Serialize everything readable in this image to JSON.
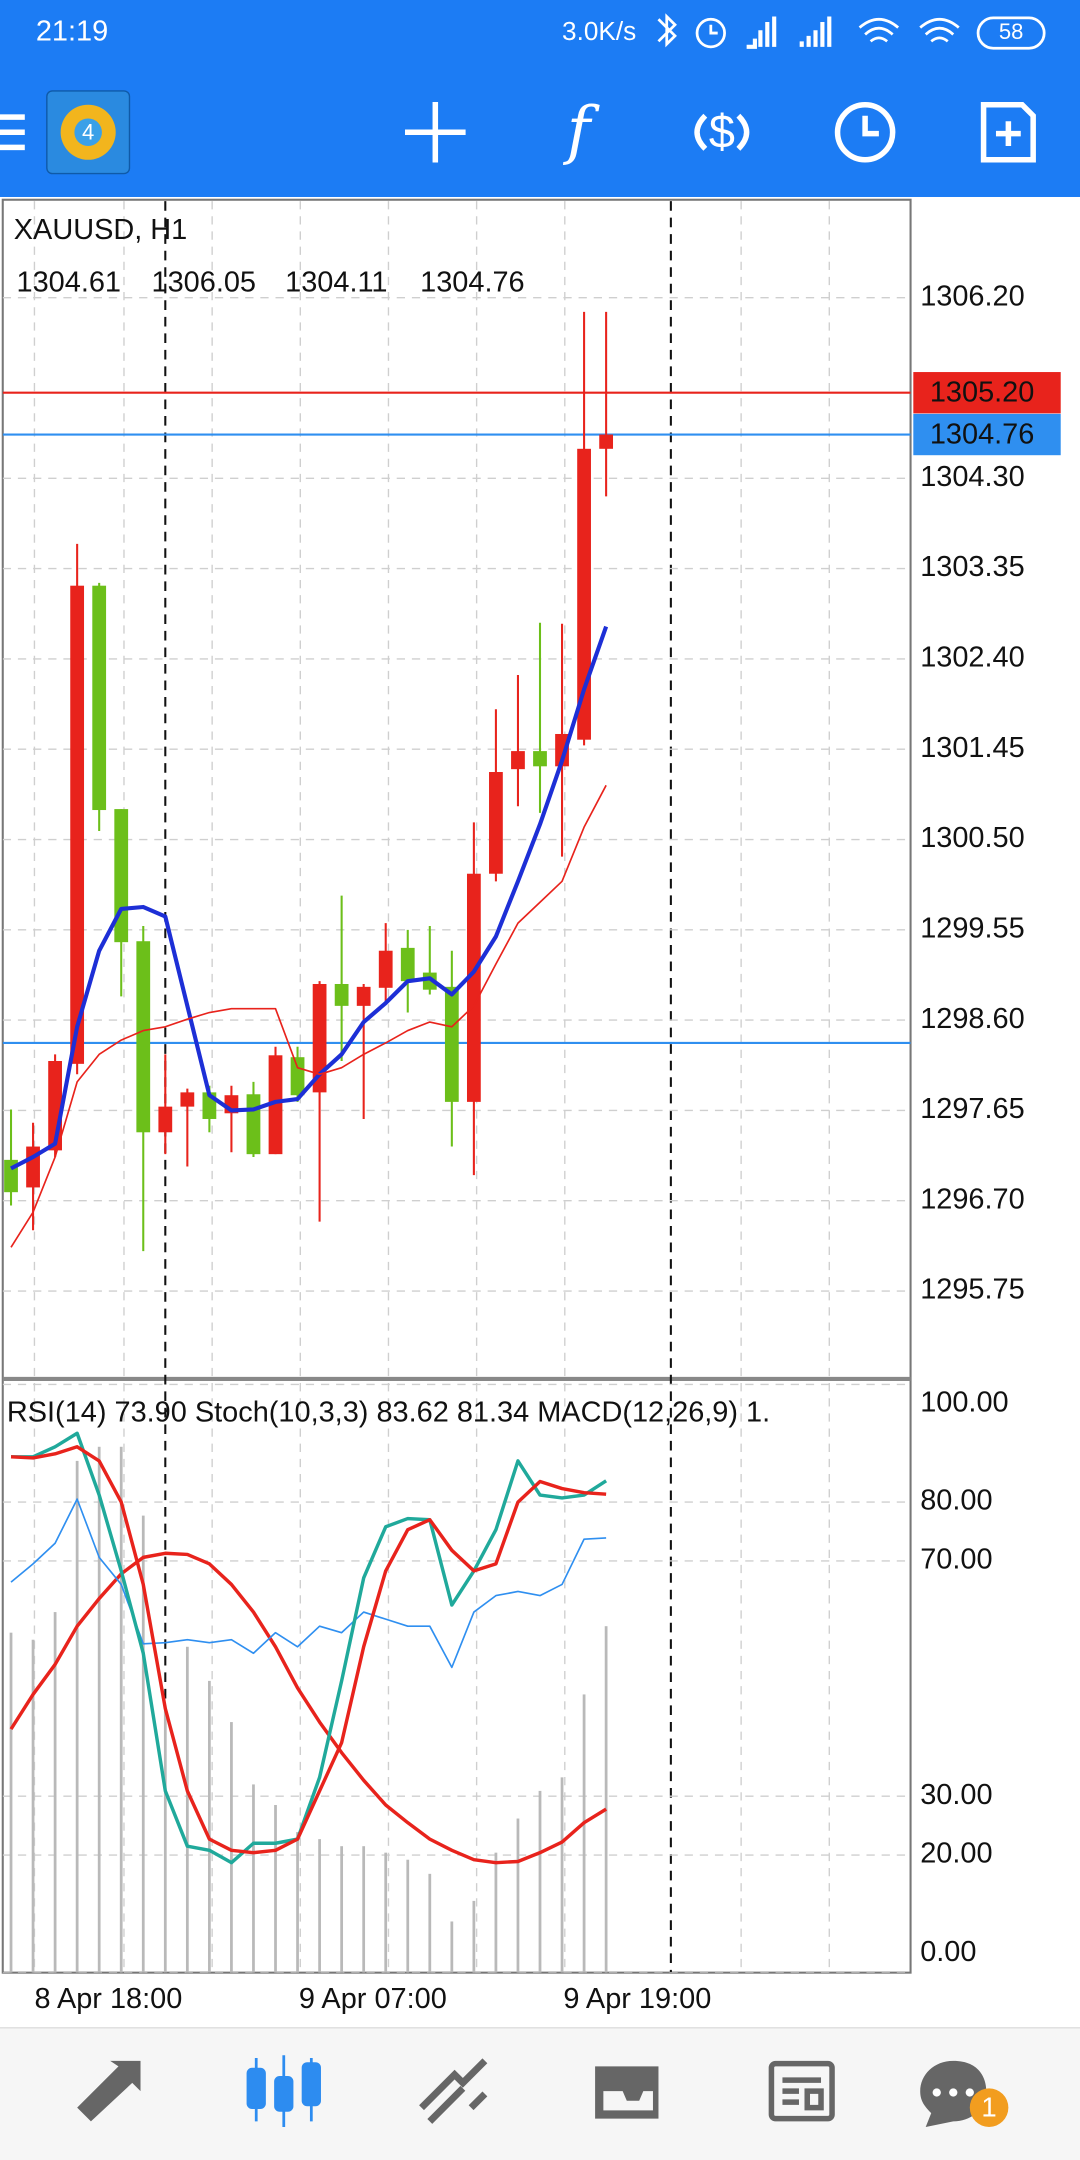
{
  "status_bar": {
    "time": "21:19",
    "speed": "3.0K/s",
    "battery": "58"
  },
  "chart_data": {
    "type": "candlestick",
    "symbol": "XAUUSD, H1",
    "up_color": "#e8231c",
    "down_color": "#6cbf1a",
    "categories": [
      null,
      "8 Apr 18:00",
      null,
      null,
      null,
      null,
      null,
      null,
      null,
      null,
      null,
      null,
      null,
      "9 Apr 07:00",
      null,
      null,
      null,
      null,
      null,
      null,
      null,
      null,
      null,
      null,
      null,
      "9 Apr 19:00",
      null,
      null
    ],
    "open": [
      1297.13,
      1296.84,
      1297.23,
      1298.14,
      1303.17,
      1300.82,
      1299.43,
      1297.42,
      1297.69,
      1297.84,
      1297.62,
      1297.82,
      1297.19,
      1298.21,
      1297.84,
      1298.98,
      1298.75,
      1298.94,
      1299.36,
      1299.1,
      1298.95,
      1297.74,
      1300.14,
      1301.24,
      1301.43,
      1301.27,
      1301.55,
      1304.61
    ],
    "high": [
      1297.66,
      1297.52,
      1298.24,
      1303.61,
      1303.2,
      1300.82,
      1299.59,
      1298.24,
      1297.88,
      1297.91,
      1297.91,
      1297.95,
      1298.32,
      1298.32,
      1299.01,
      1299.91,
      1298.98,
      1299.62,
      1299.55,
      1299.59,
      1299.33,
      1300.68,
      1301.87,
      1302.23,
      1302.78,
      1302.77,
      1306.05,
      1306.05
    ],
    "low": [
      1296.65,
      1296.39,
      1297.16,
      1298.03,
      1300.59,
      1298.85,
      1296.17,
      1297.19,
      1297.06,
      1297.42,
      1297.21,
      1297.16,
      1297.19,
      1297.74,
      1296.48,
      1298.17,
      1297.56,
      1298.79,
      1298.68,
      1298.87,
      1297.27,
      1296.97,
      1300.06,
      1300.85,
      1300.78,
      1300.32,
      1301.49,
      1304.11
    ],
    "close": [
      1296.79,
      1297.27,
      1298.17,
      1303.17,
      1300.81,
      1299.42,
      1297.42,
      1297.69,
      1297.84,
      1297.56,
      1297.81,
      1297.19,
      1298.23,
      1297.81,
      1298.98,
      1298.75,
      1298.95,
      1299.33,
      1299.01,
      1298.92,
      1297.74,
      1300.14,
      1301.21,
      1301.43,
      1301.27,
      1301.61,
      1304.61,
      1304.76
    ],
    "overlays": [
      {
        "color": "#1d2fd6",
        "values": [
          1297.04,
          1297.16,
          1297.3,
          1298.53,
          1299.33,
          1299.77,
          1299.79,
          1299.69,
          1298.75,
          1297.81,
          1297.65,
          1297.66,
          1297.74,
          1297.77,
          1298.03,
          1298.24,
          1298.58,
          1298.78,
          1299.01,
          1299.04,
          1298.87,
          1299.11,
          1299.48,
          1300.06,
          1300.66,
          1301.33,
          1302.08,
          1302.74
        ]
      },
      {
        "color": "#e8231c",
        "values": [
          1296.21,
          1296.58,
          1297.16,
          1297.95,
          1298.24,
          1298.39,
          1298.49,
          1298.53,
          1298.61,
          1298.68,
          1298.72,
          1298.72,
          1298.72,
          1298.1,
          1298.03,
          1298.1,
          1298.24,
          1298.36,
          1298.49,
          1298.58,
          1298.53,
          1298.75,
          1299.19,
          1299.62,
          1299.84,
          1300.06,
          1300.63,
          1301.07
        ]
      }
    ],
    "price_lines": [
      {
        "value": 1305.2,
        "label": "1305.20",
        "color": "#e8231c"
      },
      {
        "value": 1304.76,
        "label": "1304.76",
        "color": "#2f8ff0"
      },
      {
        "value": 1298.36,
        "color": "#2f8ff0"
      }
    ],
    "ylim": [
      1294.84,
      1307.23
    ],
    "yticks": [
      {
        "value": 1306.2,
        "label": "1306.20"
      },
      {
        "value": 1304.3,
        "label": "1304.30"
      },
      {
        "value": 1303.35,
        "label": "1303.35"
      },
      {
        "value": 1302.4,
        "label": "1302.40"
      },
      {
        "value": 1301.45,
        "label": "1301.45"
      },
      {
        "value": 1300.5,
        "label": "1300.50"
      },
      {
        "value": 1299.55,
        "label": "1299.55"
      },
      {
        "value": 1298.6,
        "label": "1298.60"
      },
      {
        "value": 1297.65,
        "label": "1297.65"
      },
      {
        "value": 1296.7,
        "label": "1296.70"
      },
      {
        "value": 1295.75,
        "label": "1295.75"
      }
    ],
    "grid": true,
    "indicator_pane": {
      "labels": [
        "RSI(14)",
        "73.90",
        "Stoch(10,3,3)",
        "83.62",
        "81.34",
        "MACD(12,26,9)",
        "1."
      ],
      "ylim": [
        0,
        100
      ],
      "yticks": [
        {
          "value": 100,
          "label": "100.00"
        },
        {
          "value": 80,
          "label": "80.00"
        },
        {
          "value": 70,
          "label": "70.00"
        },
        {
          "value": 30,
          "label": "30.00"
        },
        {
          "value": 20,
          "label": "20.00"
        },
        {
          "value": 0,
          "label": "0.00"
        }
      ],
      "histogram": {
        "color": "#b9b9b9",
        "values": [
          57.8,
          56.6,
          61.3,
          87.0,
          89.4,
          89.4,
          77.7,
          44.9,
          55.4,
          49.6,
          42.6,
          32.0,
          28.5,
          23.9,
          22.7,
          21.5,
          21.5,
          20.4,
          19.2,
          16.8,
          8.7,
          12.2,
          20.4,
          26.2,
          30.9,
          33.2,
          47.3,
          58.9
        ]
      },
      "series": [
        {
          "color": "#e8231c",
          "values": [
            41.4,
            47.3,
            52.4,
            58.9,
            63.6,
            67.8,
            70.6,
            71.3,
            71.1,
            69.5,
            66.0,
            61.3,
            55.4,
            48.4,
            42.6,
            37.4,
            32.7,
            28.5,
            25.5,
            22.7,
            20.8,
            19.2,
            18.7,
            18.9,
            20.4,
            22.2,
            25.5,
            27.8
          ]
        },
        {
          "color": "#2f8ff0",
          "values": [
            66.4,
            69.5,
            73.0,
            80.5,
            70.6,
            66.0,
            55.9,
            56.1,
            56.6,
            56.1,
            56.6,
            54.3,
            57.8,
            55.4,
            58.9,
            57.8,
            61.3,
            60.1,
            58.9,
            58.9,
            51.9,
            61.3,
            64.1,
            64.8,
            64.1,
            66.0,
            73.7,
            73.9
          ]
        },
        {
          "color": "#20a99b",
          "values": [
            87.7,
            87.7,
            89.4,
            91.7,
            81.2,
            68.3,
            54.3,
            30.9,
            21.5,
            20.8,
            18.7,
            22.0,
            22.0,
            22.7,
            33.2,
            49.6,
            67.1,
            75.8,
            77.2,
            77.0,
            62.5,
            68.3,
            75.3,
            87.0,
            81.2,
            80.7,
            81.2,
            83.62
          ]
        },
        {
          "color": "#e8231c",
          "values": [
            87.7,
            87.5,
            88.2,
            89.4,
            87.0,
            80.0,
            66.0,
            44.9,
            30.9,
            22.7,
            20.8,
            20.4,
            20.8,
            22.7,
            30.9,
            39.1,
            55.4,
            68.3,
            75.3,
            77.0,
            71.8,
            68.3,
            69.5,
            80.0,
            83.5,
            82.3,
            81.6,
            81.34
          ]
        }
      ]
    }
  },
  "bottom_nav": {
    "badge": "1"
  }
}
